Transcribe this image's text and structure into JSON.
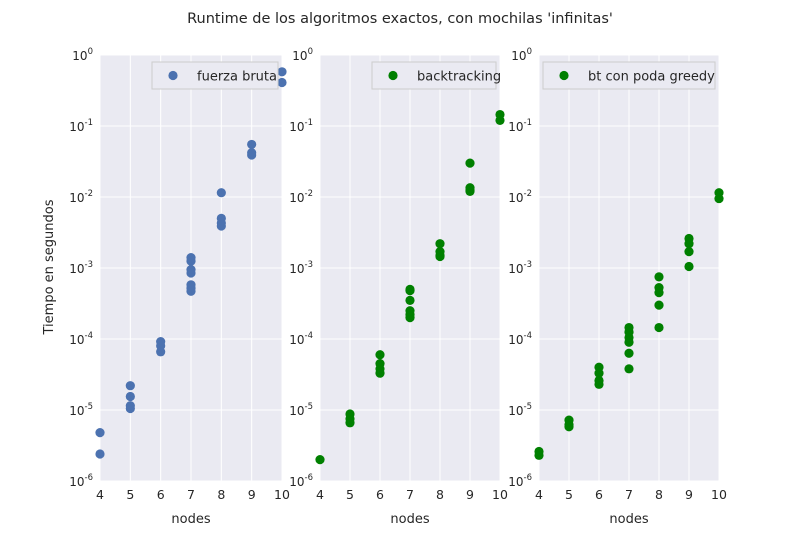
{
  "title": "Runtime de los algoritmos exactos, con mochilas 'infinitas'",
  "ylabel": "Tiempo en segundos",
  "colors": {
    "panel_bg": "#eaeaf2",
    "grid": "#ffffff",
    "blue": "#4c72b0",
    "green": "#008000"
  },
  "chart_data": [
    {
      "type": "scatter",
      "xlabel": "nodes",
      "ylabel": "Tiempo en segundos",
      "yscale": "log",
      "xlim": [
        4,
        10
      ],
      "ylim": [
        1e-06,
        1
      ],
      "xticks": [
        "4",
        "5",
        "6",
        "7",
        "8",
        "9",
        "10"
      ],
      "yticks": [
        {
          "base": "10",
          "exp": "-6"
        },
        {
          "base": "10",
          "exp": "-5"
        },
        {
          "base": "10",
          "exp": "-4"
        },
        {
          "base": "10",
          "exp": "-3"
        },
        {
          "base": "10",
          "exp": "-2"
        },
        {
          "base": "10",
          "exp": "-1"
        },
        {
          "base": "10",
          "exp": "0"
        }
      ],
      "grid": true,
      "legend": "top-right",
      "series": [
        {
          "name": "fuerza bruta",
          "color": "#4c72b0",
          "points": [
            [
              4,
              4.8e-06
            ],
            [
              4,
              2.4e-06
            ],
            [
              5,
              2.2e-05
            ],
            [
              5,
              1.55e-05
            ],
            [
              5,
              1.15e-05
            ],
            [
              5,
              1.05e-05
            ],
            [
              6,
              9.2e-05
            ],
            [
              6,
              8e-05
            ],
            [
              6,
              6.6e-05
            ],
            [
              7,
              0.0014
            ],
            [
              7,
              0.00125
            ],
            [
              7,
              0.00095
            ],
            [
              7,
              0.00085
            ],
            [
              7,
              0.00058
            ],
            [
              7,
              0.00052
            ],
            [
              7,
              0.00047
            ],
            [
              8,
              0.0115
            ],
            [
              8,
              0.005
            ],
            [
              8,
              0.0043
            ],
            [
              8,
              0.0039
            ],
            [
              9,
              0.055
            ],
            [
              9,
              0.042
            ],
            [
              9,
              0.039
            ],
            [
              10,
              0.58
            ],
            [
              10,
              0.41
            ]
          ]
        }
      ]
    },
    {
      "type": "scatter",
      "xlabel": "nodes",
      "yscale": "log",
      "xlim": [
        4,
        10
      ],
      "ylim": [
        1e-06,
        1
      ],
      "xticks": [
        "4",
        "5",
        "6",
        "7",
        "8",
        "9",
        "10"
      ],
      "yticks": [
        {
          "base": "10",
          "exp": "-6"
        },
        {
          "base": "10",
          "exp": "-5"
        },
        {
          "base": "10",
          "exp": "-4"
        },
        {
          "base": "10",
          "exp": "-3"
        },
        {
          "base": "10",
          "exp": "-2"
        },
        {
          "base": "10",
          "exp": "-1"
        },
        {
          "base": "10",
          "exp": "0"
        }
      ],
      "grid": true,
      "legend": "top-right",
      "series": [
        {
          "name": "backtracking",
          "color": "#008000",
          "points": [
            [
              4,
              2e-06
            ],
            [
              5,
              8.8e-06
            ],
            [
              5,
              7.5e-06
            ],
            [
              5,
              6.6e-06
            ],
            [
              6,
              6e-05
            ],
            [
              6,
              4.5e-05
            ],
            [
              6,
              3.8e-05
            ],
            [
              6,
              3.3e-05
            ],
            [
              7,
              0.0005
            ],
            [
              7,
              0.00048
            ],
            [
              7,
              0.00035
            ],
            [
              7,
              0.00025
            ],
            [
              7,
              0.00022
            ],
            [
              7,
              0.0002
            ],
            [
              8,
              0.0022
            ],
            [
              8,
              0.0017
            ],
            [
              8,
              0.0015
            ],
            [
              8,
              0.00145
            ],
            [
              9,
              0.03
            ],
            [
              9,
              0.0135
            ],
            [
              9,
              0.0125
            ],
            [
              9,
              0.012
            ],
            [
              10,
              0.145
            ],
            [
              10,
              0.12
            ]
          ]
        }
      ]
    },
    {
      "type": "scatter",
      "xlabel": "nodes",
      "yscale": "log",
      "xlim": [
        4,
        10
      ],
      "ylim": [
        1e-06,
        1
      ],
      "xticks": [
        "4",
        "5",
        "6",
        "7",
        "8",
        "9",
        "10"
      ],
      "yticks": [
        {
          "base": "10",
          "exp": "-6"
        },
        {
          "base": "10",
          "exp": "-5"
        },
        {
          "base": "10",
          "exp": "-4"
        },
        {
          "base": "10",
          "exp": "-3"
        },
        {
          "base": "10",
          "exp": "-2"
        },
        {
          "base": "10",
          "exp": "-1"
        },
        {
          "base": "10",
          "exp": "0"
        }
      ],
      "grid": true,
      "legend": "top-right",
      "series": [
        {
          "name": "bt con poda greedy",
          "color": "#008000",
          "points": [
            [
              4,
              2.6e-06
            ],
            [
              4,
              2.3e-06
            ],
            [
              5,
              7.2e-06
            ],
            [
              5,
              6.2e-06
            ],
            [
              5,
              5.8e-06
            ],
            [
              6,
              4e-05
            ],
            [
              6,
              3.3e-05
            ],
            [
              6,
              2.6e-05
            ],
            [
              6,
              2.3e-05
            ],
            [
              7,
              0.000145
            ],
            [
              7,
              0.000125
            ],
            [
              7,
              0.000105
            ],
            [
              7,
              9e-05
            ],
            [
              7,
              6.3e-05
            ],
            [
              7,
              3.8e-05
            ],
            [
              8,
              0.00075
            ],
            [
              8,
              0.00053
            ],
            [
              8,
              0.00045
            ],
            [
              8,
              0.0003
            ],
            [
              8,
              0.000145
            ],
            [
              9,
              0.0026
            ],
            [
              9,
              0.0022
            ],
            [
              9,
              0.0017
            ],
            [
              9,
              0.00105
            ],
            [
              10,
              0.0115
            ],
            [
              10,
              0.0095
            ]
          ]
        }
      ]
    }
  ]
}
